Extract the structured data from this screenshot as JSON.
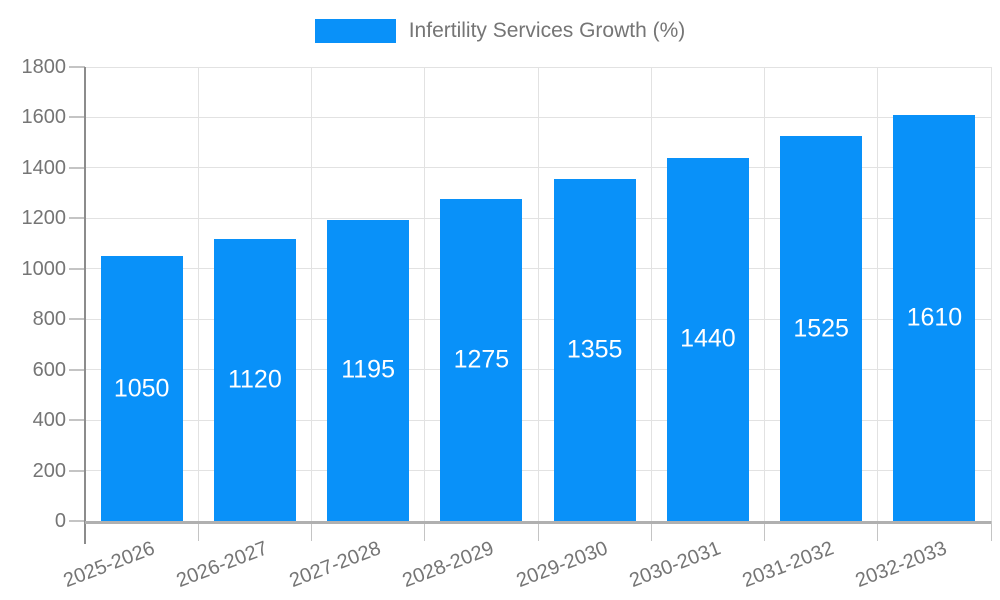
{
  "legend": {
    "label": "Infertility Services Growth (%)"
  },
  "chart_data": {
    "type": "bar",
    "title": "",
    "series_name": "Infertility Services Growth (%)",
    "categories": [
      "2025-2026",
      "2026-2027",
      "2027-2028",
      "2028-2029",
      "2029-2030",
      "2030-2031",
      "2031-2032",
      "2032-2033"
    ],
    "values": [
      1050,
      1120,
      1195,
      1275,
      1355,
      1440,
      1525,
      1610
    ],
    "xlabel": "",
    "ylabel": "",
    "ylim": [
      0,
      1800
    ],
    "y_ticks": [
      "0",
      "200",
      "400",
      "600",
      "800",
      "1000",
      "1200",
      "1400",
      "1600",
      "1800"
    ],
    "grid": true,
    "legend_position": "top-center",
    "bar_value_labels_inside": true,
    "colors": {
      "bar": "#0991f9",
      "value_label": "#ffffff",
      "axis_text": "#757575",
      "grid": "#e2e2e2",
      "tick": "#c4c4c4",
      "y_axis_line": "#8c8c8c",
      "x_axis_line": "#b0b0b0",
      "background": "#ffffff"
    }
  }
}
